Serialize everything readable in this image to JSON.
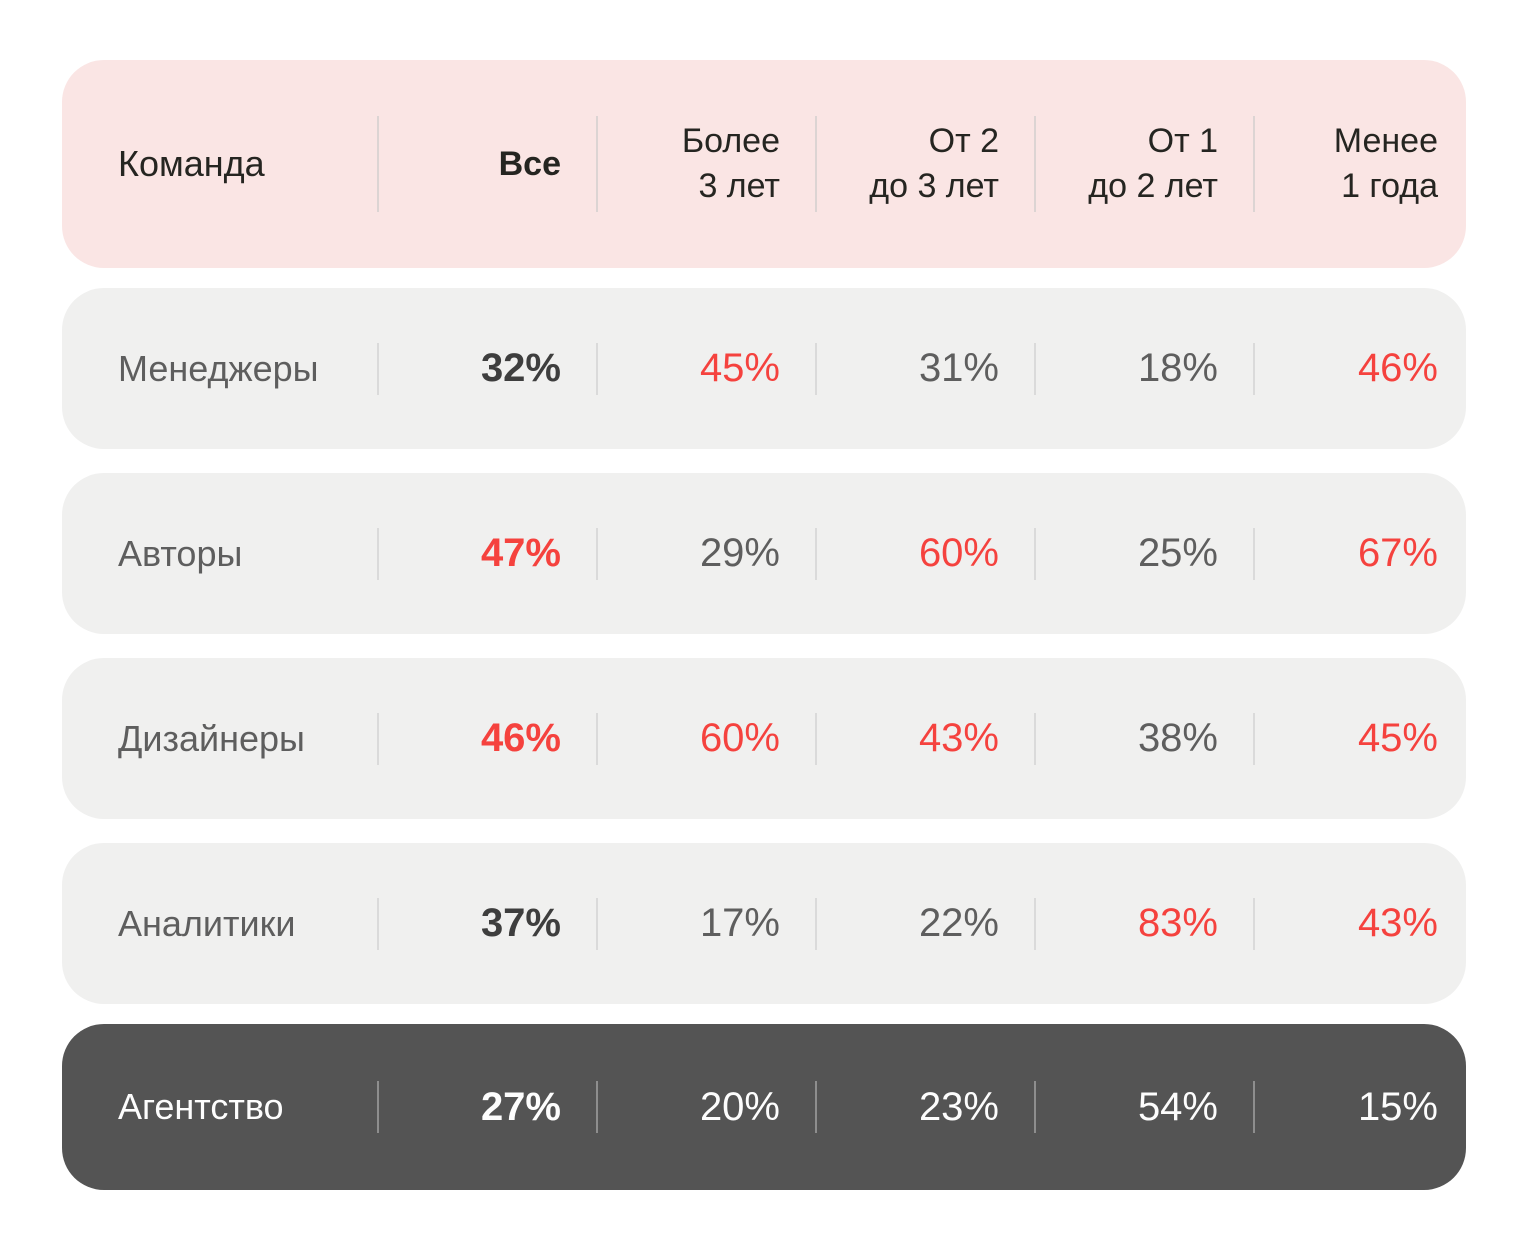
{
  "palette": {
    "header_bg": "#FAE5E4",
    "row_bg": "#F0F0EF",
    "dark_row_bg": "#545454",
    "red_accent": "#F5423E",
    "pink_on_dark": "#EFA9A7",
    "gray_text": "#5E5E5E",
    "dark_text": "#3E3E3E",
    "header_text": "#252521"
  },
  "header": {
    "cells": [
      {
        "line1": "Команда",
        "line2": ""
      },
      {
        "line1": "Все",
        "line2": ""
      },
      {
        "line1": "Более",
        "line2": "3 лет"
      },
      {
        "line1": "От 2",
        "line2": "до 3 лет"
      },
      {
        "line1": "От 1",
        "line2": "до 2 лет"
      },
      {
        "line1": "Менее",
        "line2": "1 года"
      }
    ]
  },
  "rows": [
    {
      "label": "Менеджеры",
      "values": [
        {
          "text": "32%",
          "tone": "bold-dark"
        },
        {
          "text": "45%",
          "tone": "red"
        },
        {
          "text": "31%",
          "tone": "gray"
        },
        {
          "text": "18%",
          "tone": "gray"
        },
        {
          "text": "46%",
          "tone": "red"
        }
      ]
    },
    {
      "label": "Авторы",
      "values": [
        {
          "text": "47%",
          "tone": "bold-red"
        },
        {
          "text": "29%",
          "tone": "gray"
        },
        {
          "text": "60%",
          "tone": "red"
        },
        {
          "text": "25%",
          "tone": "gray"
        },
        {
          "text": "67%",
          "tone": "red"
        }
      ]
    },
    {
      "label": "Дизайнеры",
      "values": [
        {
          "text": "46%",
          "tone": "bold-red"
        },
        {
          "text": "60%",
          "tone": "red"
        },
        {
          "text": "43%",
          "tone": "red"
        },
        {
          "text": "38%",
          "tone": "gray"
        },
        {
          "text": "45%",
          "tone": "red"
        }
      ]
    },
    {
      "label": "Аналитики",
      "values": [
        {
          "text": "37%",
          "tone": "bold-dark"
        },
        {
          "text": "17%",
          "tone": "gray"
        },
        {
          "text": "22%",
          "tone": "gray"
        },
        {
          "text": "83%",
          "tone": "red"
        },
        {
          "text": "43%",
          "tone": "red"
        }
      ]
    },
    {
      "label": "Агентство",
      "theme": "dark",
      "values": [
        {
          "text": "27%",
          "tone": "bold-white"
        },
        {
          "text": "20%",
          "tone": "white"
        },
        {
          "text": "23%",
          "tone": "white"
        },
        {
          "text": "54%",
          "tone": "pink"
        },
        {
          "text": "15%",
          "tone": "white"
        }
      ]
    }
  ],
  "chart_data": {
    "type": "table",
    "columns": [
      "Команда",
      "Все",
      "Более 3 лет",
      "От 2 до 3 лет",
      "От 1 до 2 лет",
      "Менее 1 года"
    ],
    "rows": [
      [
        "Менеджеры",
        "32%",
        "45%",
        "31%",
        "18%",
        "46%"
      ],
      [
        "Авторы",
        "47%",
        "29%",
        "60%",
        "25%",
        "67%"
      ],
      [
        "Дизайнеры",
        "46%",
        "60%",
        "43%",
        "38%",
        "45%"
      ],
      [
        "Аналитики",
        "37%",
        "17%",
        "22%",
        "83%",
        "43%"
      ],
      [
        "Агентство",
        "27%",
        "20%",
        "23%",
        "54%",
        "15%"
      ]
    ],
    "red_highlighted_cells": [
      [
        "Менеджеры",
        "Более 3 лет",
        "45%"
      ],
      [
        "Менеджеры",
        "Менее 1 года",
        "46%"
      ],
      [
        "Авторы",
        "Все",
        "47%"
      ],
      [
        "Авторы",
        "От 2 до 3 лет",
        "60%"
      ],
      [
        "Авторы",
        "Менее 1 года",
        "67%"
      ],
      [
        "Дизайнеры",
        "Все",
        "46%"
      ],
      [
        "Дизайнеры",
        "Более 3 лет",
        "60%"
      ],
      [
        "Дизайнеры",
        "От 2 до 3 лет",
        "43%"
      ],
      [
        "Дизайнеры",
        "Менее 1 года",
        "45%"
      ],
      [
        "Аналитики",
        "От 1 до 2 лет",
        "83%"
      ],
      [
        "Аналитики",
        "Менее 1 года",
        "43%"
      ],
      [
        "Агентство",
        "От 1 до 2 лет",
        "54%"
      ]
    ]
  }
}
